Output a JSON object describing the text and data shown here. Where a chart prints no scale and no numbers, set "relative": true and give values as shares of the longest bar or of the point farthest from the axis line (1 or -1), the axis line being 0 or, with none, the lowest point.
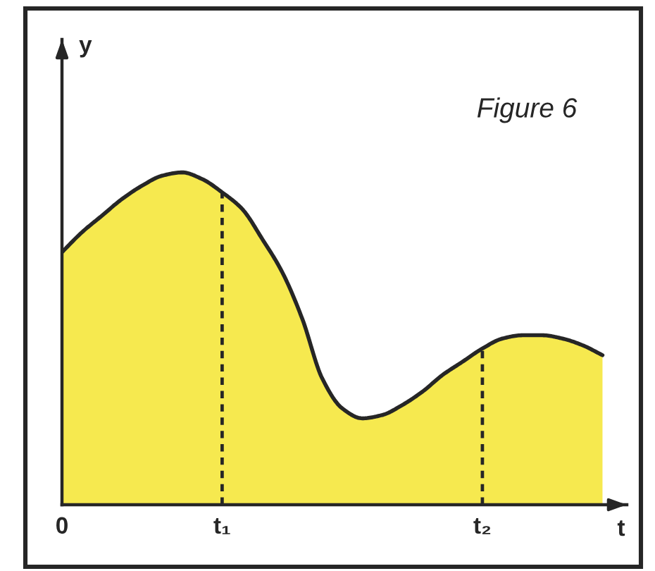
{
  "chart_data": {
    "type": "area",
    "title": "Figure 6",
    "xlabel": "t",
    "ylabel": "y",
    "relative": true,
    "categories": [
      "0",
      null,
      null,
      null,
      null,
      null,
      null,
      null,
      "t₁",
      null,
      null,
      null,
      null,
      null,
      null,
      null,
      null,
      null,
      null,
      null,
      null,
      "t₂",
      null,
      null,
      null,
      null,
      null,
      null
    ],
    "series": [
      {
        "color": "#f6e94f",
        "values": [
          0.76,
          0.82,
          0.87,
          0.92,
          0.96,
          0.99,
          1,
          0.98,
          0.94,
          0.89,
          0.8,
          0.7,
          0.56,
          0.38,
          0.29,
          0.26,
          0.27,
          0.3,
          0.34,
          0.39,
          0.43,
          0.47,
          0.5,
          0.51,
          0.51,
          0.5,
          0.48,
          0.45
        ]
      }
    ],
    "ref_lines": [
      {
        "axis": "x",
        "value": "t₁",
        "line_style": "dashed"
      },
      {
        "axis": "x",
        "value": "t₂",
        "line_style": "dashed"
      }
    ]
  }
}
